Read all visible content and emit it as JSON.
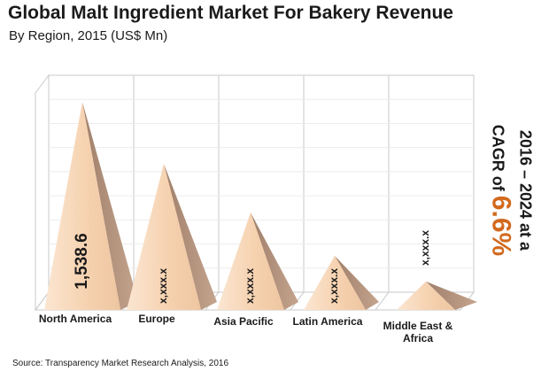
{
  "chart_data": {
    "type": "bar",
    "title": "Global Malt Ingredient Market For Bakery Revenue",
    "subtitle": "By Region, 2015 (US$ Mn)",
    "categories": [
      "North America",
      "Europe",
      "Asia Pacific",
      "Latin America",
      "Middle East & Africa"
    ],
    "category_lines": [
      [
        "North America"
      ],
      [
        "Europe"
      ],
      [
        "Asia Pacific"
      ],
      [
        "Latin America"
      ],
      [
        "Middle East &",
        "Africa"
      ]
    ],
    "value_labels": [
      "1,538.6",
      "x,xxx.x",
      "x,xxx.x",
      "x,xxx.x",
      "x,xxx.x"
    ],
    "values": [
      1538.6,
      1080,
      720,
      400,
      210
    ],
    "ylim": [
      0,
      1650
    ],
    "grid": true,
    "legend": "none"
  },
  "cagr": {
    "line1": "2016 – 2024 at a",
    "line2_prefix": "CAGR of ",
    "value": "6.6%"
  },
  "source": "Source: Transparency Market Research Analysis, 2016",
  "colors": {
    "pyramid_light": "#f8dcc2",
    "pyramid_shadow": "#b0907a",
    "accent": "#d2691e",
    "grid": "#c8c8c8"
  }
}
